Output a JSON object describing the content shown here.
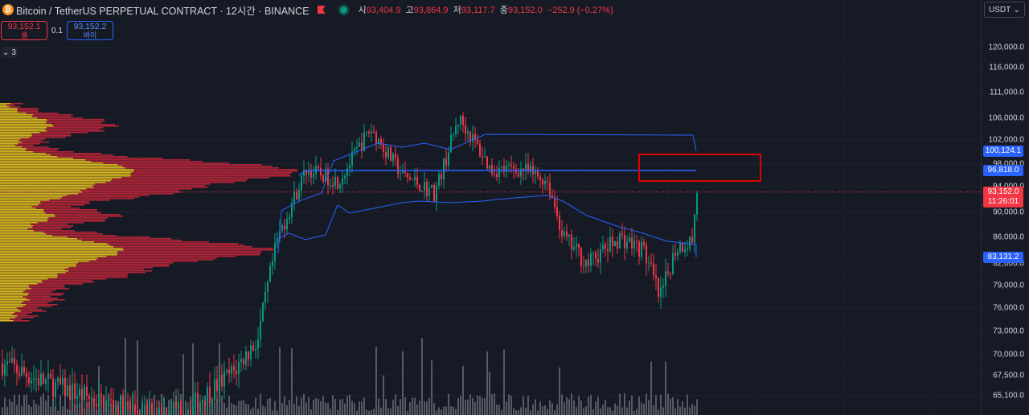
{
  "header": {
    "coin_glyph": "₿",
    "symbol_title": "Bitcoin / TetherUS PERPETUAL CONTRACT · 12시간 · BINANCE",
    "ohlc": [
      {
        "key": "시",
        "value": "93,404.9"
      },
      {
        "key": "고",
        "value": "93,864.9"
      },
      {
        "key": "저",
        "value": "93,117.7"
      },
      {
        "key": "종",
        "value": "93,152.0"
      }
    ],
    "change": "−252.9 (−0.27%)"
  },
  "trade": {
    "sell_price": "93,152.1",
    "sell_label": "셀",
    "spread": "0.1",
    "buy_price": "93,152.2",
    "buy_label": "바이"
  },
  "indicators": {
    "count": "3",
    "chevron": "⌄"
  },
  "currency": {
    "label": "USDT",
    "chevron": "⌄"
  },
  "price_axis": [
    {
      "label": "120,000.0",
      "value": 120000
    },
    {
      "label": "116,000.0",
      "value": 116000
    },
    {
      "label": "111,000.0",
      "value": 111000
    },
    {
      "label": "106,000.0",
      "value": 106000
    },
    {
      "label": "102,000.0",
      "value": 102000
    },
    {
      "label": "98,000.0",
      "value": 98000
    },
    {
      "label": "94,000.0",
      "value": 94000
    },
    {
      "label": "90,000.0",
      "value": 90000
    },
    {
      "label": "86,000.0",
      "value": 86000
    },
    {
      "label": "82,000.0",
      "value": 82000
    },
    {
      "label": "79,000.0",
      "value": 79000
    },
    {
      "label": "76,000.0",
      "value": 76000
    },
    {
      "label": "73,000.0",
      "value": 73000
    },
    {
      "label": "70,000.0",
      "value": 70000
    },
    {
      "label": "67,500.0",
      "value": 67500
    },
    {
      "label": "65,100.0",
      "value": 65100
    }
  ],
  "price_tags": {
    "upper_line": "100,124.1",
    "horizontal_level": "96,818.0",
    "last_price": "93,152.0",
    "countdown": "11:26:01",
    "lower_line": "83,131.2"
  },
  "colors": {
    "background": "#161a25",
    "up": "#089981",
    "down": "#f23645",
    "line_blue": "#2962ff",
    "volume_profile_yellow": "#d4c21c",
    "volume_profile_red": "#c2263a",
    "box_red": "#e00000"
  }
}
